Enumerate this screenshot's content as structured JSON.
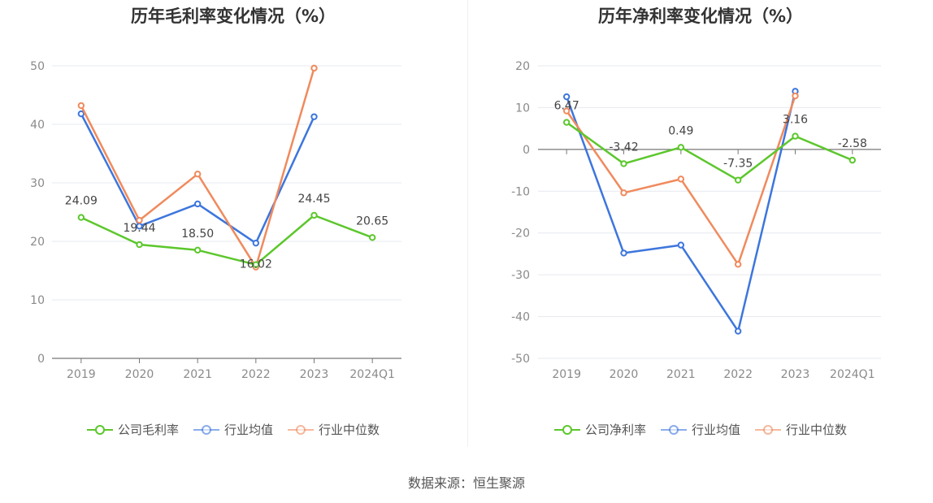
{
  "chart_data": [
    {
      "type": "line",
      "title": "历年毛利率变化情况（%）",
      "categories": [
        "2019",
        "2020",
        "2021",
        "2022",
        "2023",
        "2024Q1"
      ],
      "ylim": [
        0,
        50
      ],
      "yticks": [
        0,
        10,
        20,
        30,
        40,
        50
      ],
      "grid": true,
      "legend_position": "bottom",
      "series": [
        {
          "name": "公司毛利率",
          "color": "#5cc72c",
          "values": [
            24.09,
            19.44,
            18.5,
            16.02,
            24.45,
            20.65
          ],
          "labels": [
            "24.09",
            "19.44",
            "18.50",
            "16.02",
            "24.45",
            "20.65"
          ]
        },
        {
          "name": "行业均值",
          "color": "#3d76dd",
          "values": [
            41.8,
            22.6,
            26.4,
            19.7,
            41.3,
            null
          ]
        },
        {
          "name": "行业中位数",
          "color": "#f08a5d",
          "values": [
            43.2,
            23.6,
            31.5,
            15.6,
            49.6,
            null
          ]
        }
      ]
    },
    {
      "type": "line",
      "title": "历年净利率变化情况（%）",
      "categories": [
        "2019",
        "2020",
        "2021",
        "2022",
        "2023",
        "2024Q1"
      ],
      "ylim": [
        -50,
        20
      ],
      "yticks": [
        -50,
        -40,
        -30,
        -20,
        -10,
        0,
        10,
        20
      ],
      "grid": true,
      "legend_position": "bottom",
      "series": [
        {
          "name": "公司净利率",
          "color": "#5cc72c",
          "values": [
            6.47,
            -3.42,
            0.49,
            -7.35,
            3.16,
            -2.58
          ],
          "labels": [
            "6.47",
            "-3.42",
            "0.49",
            "-7.35",
            "3.16",
            "-2.58"
          ]
        },
        {
          "name": "行业均值",
          "color": "#3d76dd",
          "values": [
            12.6,
            -24.8,
            -22.9,
            -43.5,
            13.9,
            null
          ]
        },
        {
          "name": "行业中位数",
          "color": "#f08a5d",
          "values": [
            9.2,
            -10.4,
            -7.1,
            -27.5,
            12.8,
            null
          ]
        }
      ]
    }
  ],
  "footer": {
    "source": "数据来源：恒生聚源"
  }
}
